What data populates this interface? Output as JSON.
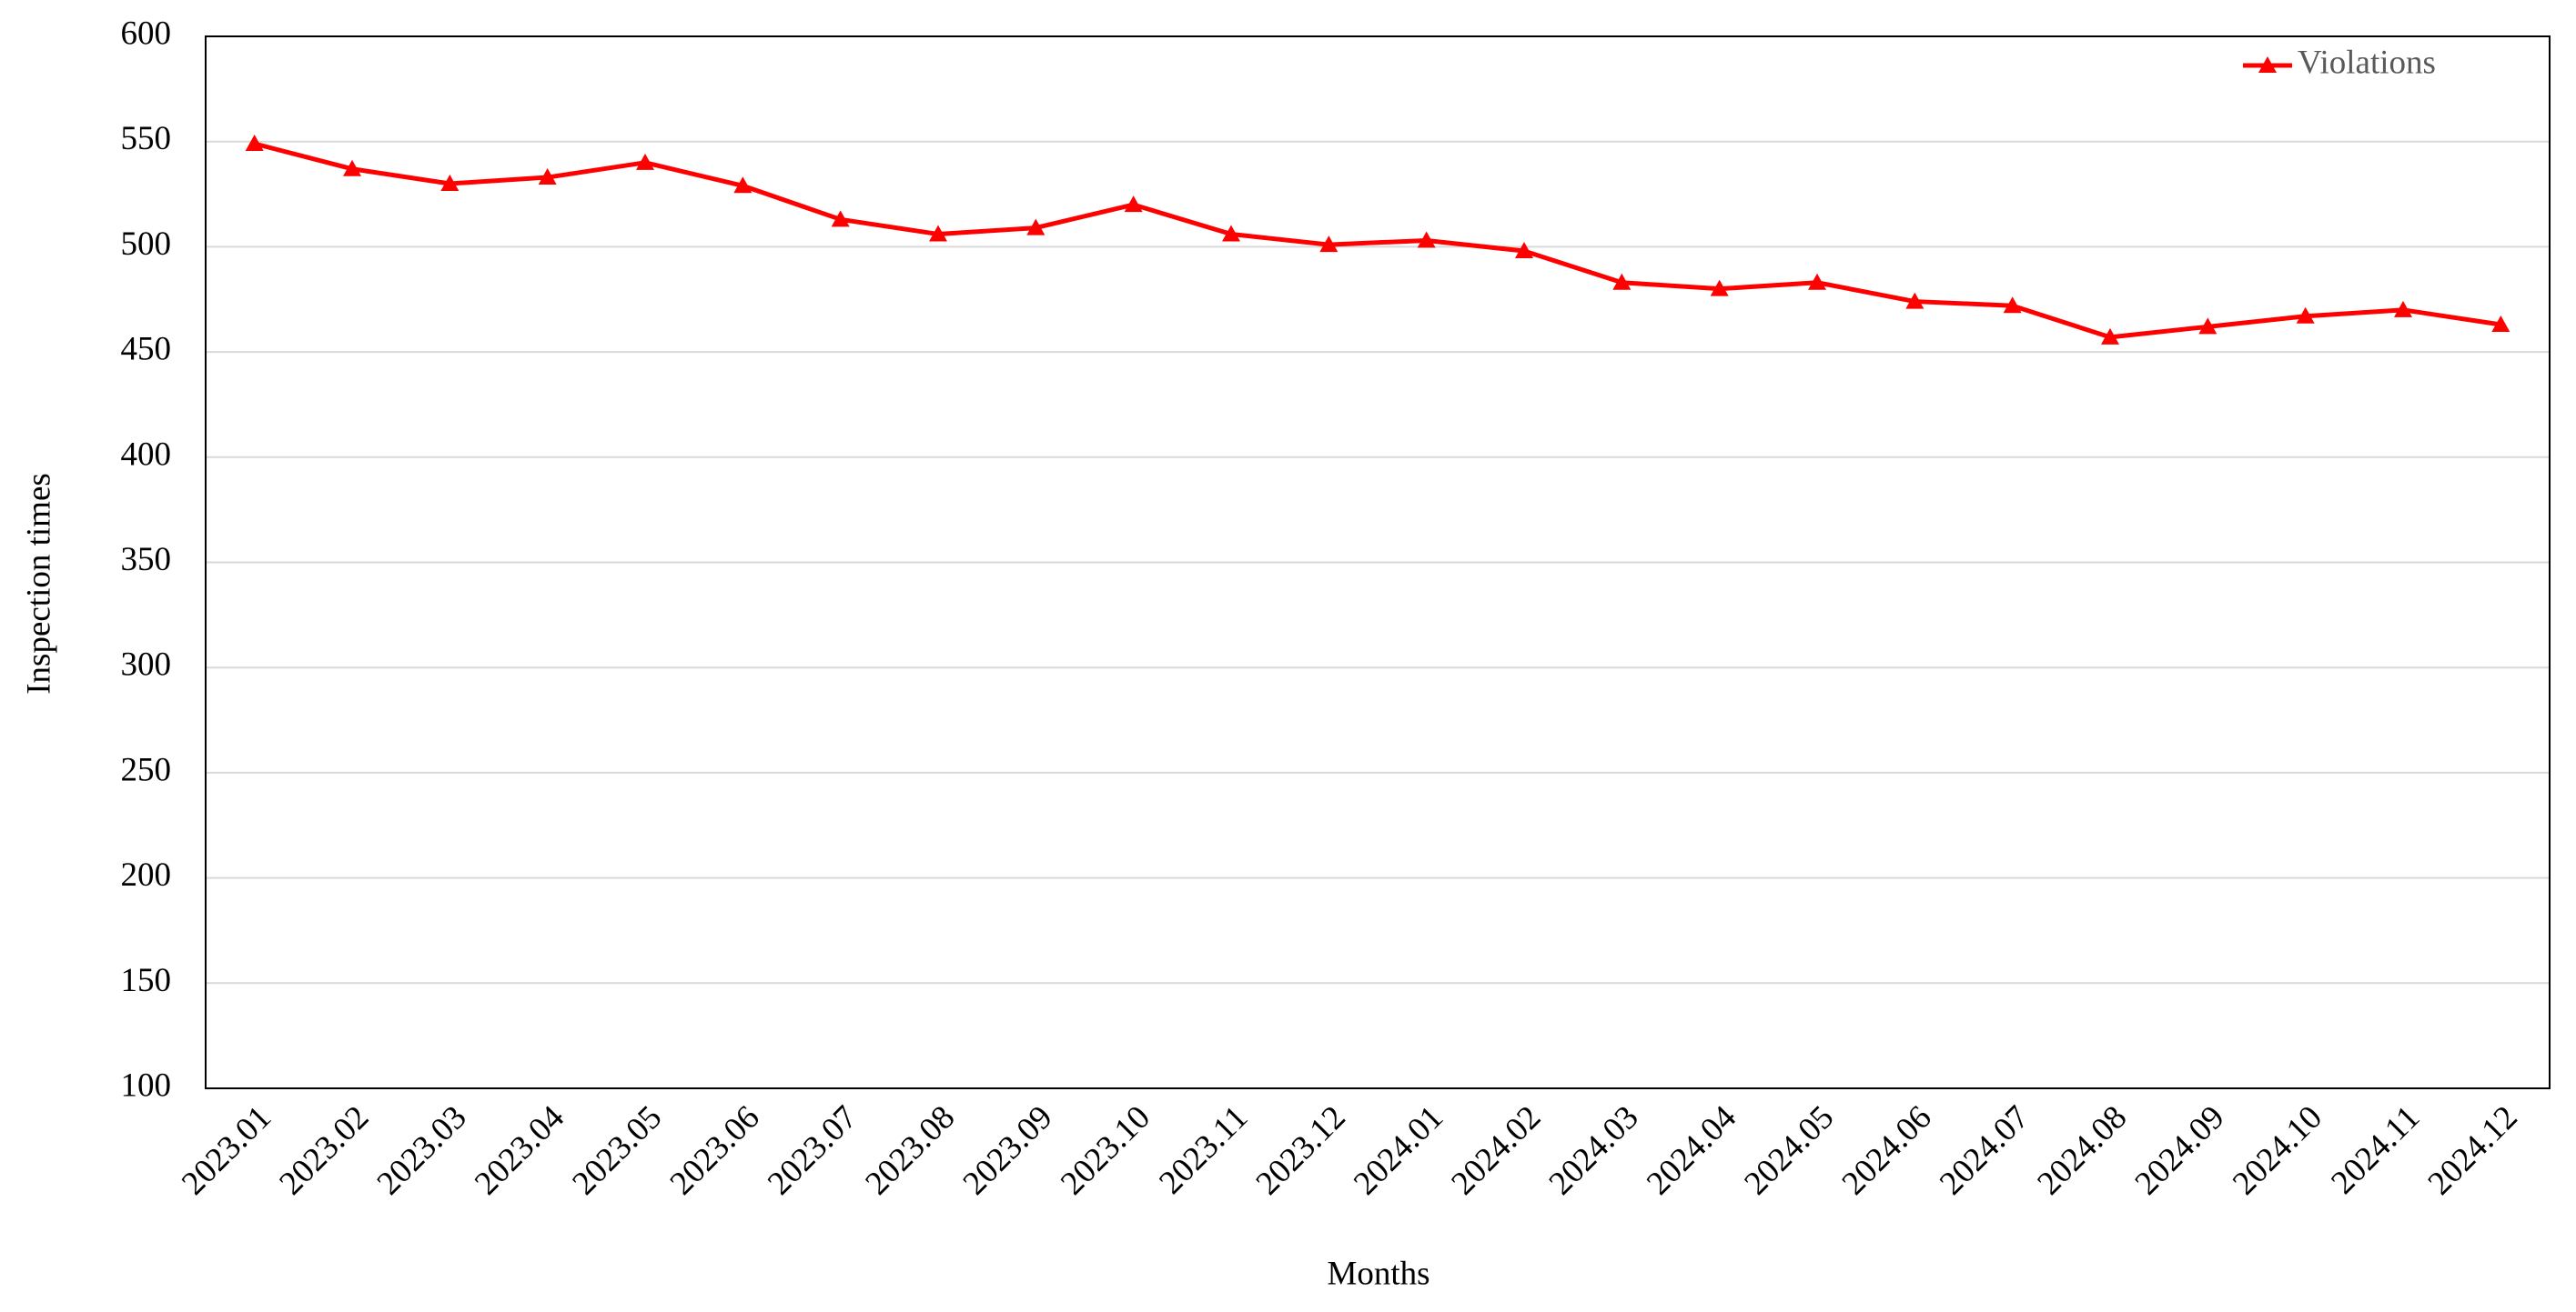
{
  "chart_data": {
    "type": "line",
    "x_label": "Months",
    "y_label": "Inspection times",
    "categories": [
      "2023.01",
      "2023.02",
      "2023.03",
      "2023.04",
      "2023.05",
      "2023.06",
      "2023.07",
      "2023.08",
      "2023.09",
      "2023.10",
      "2023.11",
      "2023.12",
      "2024.01",
      "2024.02",
      "2024.03",
      "2024.04",
      "2024.05",
      "2024.06",
      "2024.07",
      "2024.08",
      "2024.09",
      "2024.10",
      "2024.11",
      "2024.12"
    ],
    "series": [
      {
        "name": "Violations",
        "color": "#ff0000",
        "values": [
          549,
          537,
          530,
          533,
          540,
          529,
          513,
          506,
          509,
          520,
          506,
          501,
          503,
          498,
          483,
          480,
          483,
          474,
          472,
          457,
          462,
          467,
          470,
          463
        ]
      }
    ],
    "ylim": [
      100,
      600
    ],
    "yticks": [
      100,
      150,
      200,
      250,
      300,
      350,
      400,
      450,
      500,
      550,
      600
    ],
    "grid": true,
    "legend": "top-right"
  }
}
